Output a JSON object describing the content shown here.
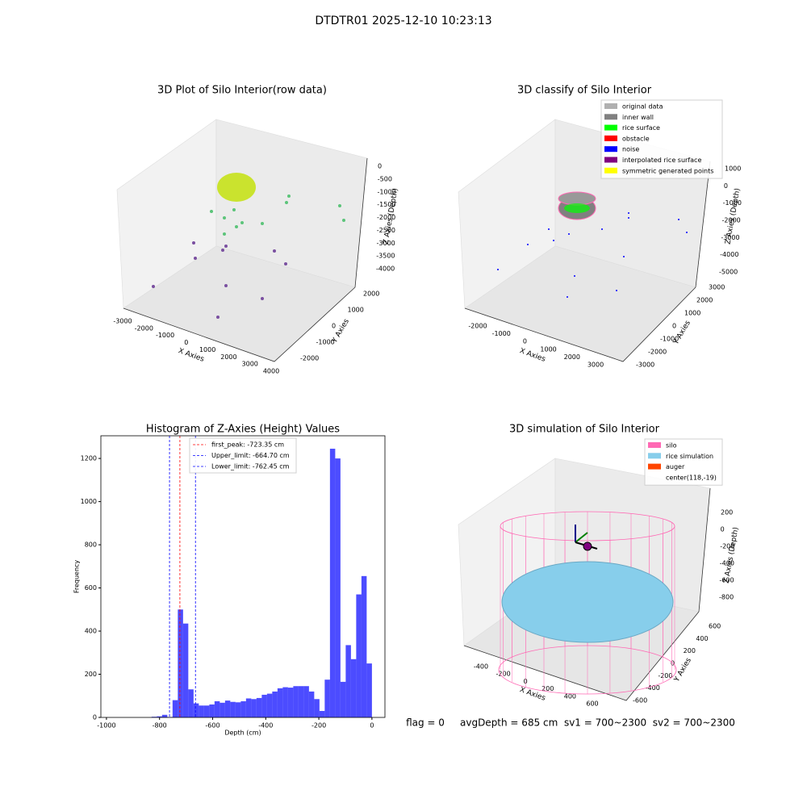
{
  "title": "DTDTR01 2025-12-10 10:23:13",
  "chart_data": [
    {
      "type": "scatter3d",
      "title": "3D Plot of Silo Interior(row data)",
      "xlabel": "X Axies",
      "ylabel": "Y Axies",
      "zlabel": "Z Axies (Depth)",
      "xticks": [
        -3000,
        -2000,
        -1000,
        0,
        1000,
        2000,
        3000,
        4000
      ],
      "yticks": [
        -2000,
        -1000,
        0,
        1000,
        2000
      ],
      "zticks": [
        0,
        -500,
        -1000,
        -1500,
        -2000,
        -2500,
        -3000,
        -3500,
        -4000
      ]
    },
    {
      "type": "scatter3d",
      "title": "3D classify of Silo Interior",
      "xlabel": "X Axies",
      "ylabel": "Y Axies",
      "zlabel": "Z Axies (Depth)",
      "xticks": [
        -2000,
        -1000,
        0,
        1000,
        2000,
        3000
      ],
      "yticks": [
        -3000,
        -2000,
        -1000,
        0,
        1000,
        2000,
        3000
      ],
      "zticks": [
        1000,
        0,
        -1000,
        -2000,
        -3000,
        -4000,
        -5000
      ],
      "legend": [
        {
          "name": "original data",
          "color": "#b0b0b0"
        },
        {
          "name": "inner wall",
          "color": "#808080"
        },
        {
          "name": "rice surface",
          "color": "#00ff00"
        },
        {
          "name": "obstacle",
          "color": "#ff0000"
        },
        {
          "name": "noise",
          "color": "#0000ff"
        },
        {
          "name": "interpolated rice surface",
          "color": "#800080"
        },
        {
          "name": "symmetric generated points",
          "color": "#ffff00"
        }
      ]
    },
    {
      "type": "histogram",
      "title": "Histogram of Z-Axies (Height) Values",
      "xlabel": "Depth (cm)",
      "ylabel": "Frequency",
      "color": "#0000ff",
      "bins": [
        -830,
        -810.2,
        -790.5,
        -770.7,
        -751.0,
        -731.2,
        -711.4,
        -691.7,
        -671.9,
        -652.1,
        -632.4,
        -612.6,
        -592.9,
        -573.1,
        -553.3,
        -533.6,
        -513.8,
        -494.0,
        -474.3,
        -454.5,
        -434.8,
        -415.0,
        -395.2,
        -375.5,
        -355.7,
        -336.0,
        -316.2,
        -296.4,
        -276.7,
        -256.9,
        -237.1,
        -217.4,
        -197.6,
        -177.9,
        -158.1,
        -138.3,
        -118.6,
        -98.8,
        -79.0,
        -59.3,
        -39.5,
        -19.8,
        0
      ],
      "values": [
        3,
        5,
        12,
        2,
        80,
        500,
        435,
        130,
        65,
        55,
        55,
        60,
        75,
        68,
        78,
        72,
        70,
        75,
        88,
        85,
        90,
        105,
        110,
        120,
        135,
        140,
        138,
        145,
        145,
        145,
        120,
        85,
        30,
        175,
        1245,
        1200,
        165,
        335,
        270,
        570,
        655,
        250
      ],
      "xlim": [
        -1021,
        49
      ],
      "ylim": [
        0,
        1305
      ],
      "xticks": [
        -1000,
        -800,
        -600,
        -400,
        -200,
        0
      ],
      "yticks": [
        0,
        200,
        400,
        600,
        800,
        1000,
        1200
      ],
      "vlines": [
        {
          "name": "first_peak: -723.35 cm",
          "value": -723.35,
          "color": "#ff0000"
        },
        {
          "name": "Upper_limit: -664.70 cm",
          "value": -664.7,
          "color": "#0000ff"
        },
        {
          "name": "Lower_limit: -762.45 cm",
          "value": -762.45,
          "color": "#0000ff"
        }
      ]
    },
    {
      "type": "scatter3d",
      "title": "3D simulation of Silo Interior",
      "xlabel": "X Axies",
      "ylabel": "Y Axies",
      "zlabel": "Z Axies (Depth)",
      "xticks": [
        -400,
        -200,
        0,
        200,
        400,
        600
      ],
      "yticks": [
        -600,
        -400,
        -200,
        0,
        200,
        400,
        600
      ],
      "zticks": [
        200,
        0,
        -200,
        -400,
        -600,
        -800
      ],
      "legend": [
        {
          "name": "silo",
          "color": "#ff69b4"
        },
        {
          "name": "rice simulation",
          "color": "#87ceeb"
        },
        {
          "name": "auger",
          "color": "#ff4500"
        },
        {
          "name": "center(118,-19)"
        }
      ]
    }
  ],
  "footer": "flag = 0     avgDepth = 685 cm  sv1 = 700~2300  sv2 = 700~2300"
}
